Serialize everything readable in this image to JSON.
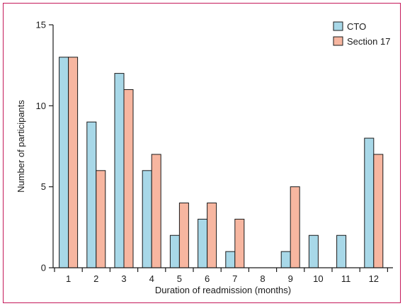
{
  "chart_data": {
    "type": "bar",
    "xlabel": "Duration of readmission (months)",
    "ylabel": "Number of participants",
    "categories": [
      "1",
      "2",
      "3",
      "4",
      "5",
      "6",
      "7",
      "8",
      "9",
      "10",
      "11",
      "12"
    ],
    "ylim": [
      0,
      15
    ],
    "yticks": [
      0,
      5,
      10,
      15
    ],
    "grid": false,
    "legend_position": "top-right",
    "series": [
      {
        "name": "CTO",
        "color": "#a8d8e8",
        "values": [
          13,
          9,
          12,
          6,
          2,
          3,
          1,
          0,
          1,
          2,
          2,
          8
        ]
      },
      {
        "name": "Section 17",
        "color": "#f7b6a0",
        "values": [
          13,
          6,
          11,
          7,
          4,
          4,
          3,
          0,
          5,
          0,
          0,
          7
        ]
      }
    ]
  },
  "frame_color": "#c5195a"
}
